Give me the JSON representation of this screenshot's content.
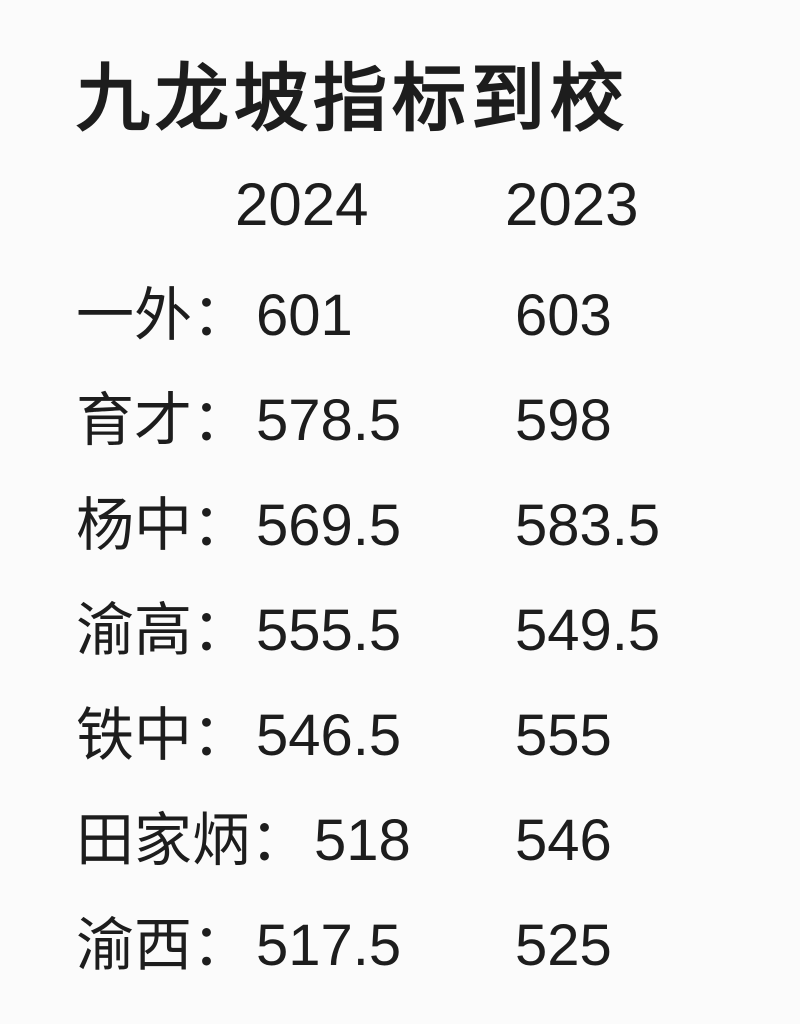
{
  "colors": {
    "background": "#fbfbfb",
    "text": "#1d1d1d"
  },
  "chart_data": {
    "type": "table",
    "title": "九龙坡指标到校",
    "columns": [
      "2024",
      "2023"
    ],
    "rows": [
      {
        "school": "一外",
        "label": "一外：",
        "y2024": 601,
        "y2023": 603
      },
      {
        "school": "育才",
        "label": "育才：",
        "y2024": 578.5,
        "y2023": 598
      },
      {
        "school": "杨中",
        "label": "杨中：",
        "y2024": 569.5,
        "y2023": 583.5
      },
      {
        "school": "渝高",
        "label": "渝高：",
        "y2024": 555.5,
        "y2023": 549.5
      },
      {
        "school": "铁中",
        "label": "铁中：",
        "y2024": 546.5,
        "y2023": 555
      },
      {
        "school": "田家炳",
        "label": "田家炳：",
        "y2024": 518,
        "y2023": 546
      },
      {
        "school": "渝西",
        "label": "渝西：",
        "y2024": 517.5,
        "y2023": 525
      }
    ]
  }
}
